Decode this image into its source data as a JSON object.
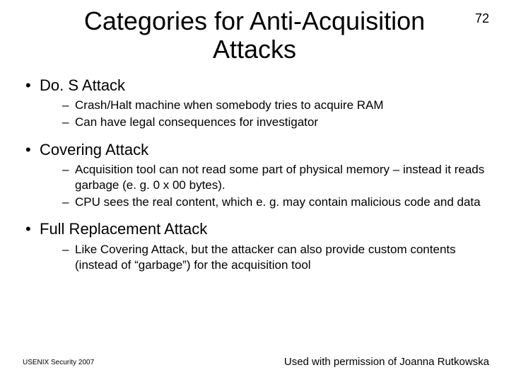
{
  "page_number": "72",
  "title": "Categories for Anti-Acquisition Attacks",
  "bullets": [
    {
      "label": "Do. S Attack",
      "sub": [
        "Crash/Halt machine when somebody tries to acquire RAM",
        "Can have legal consequences for investigator"
      ]
    },
    {
      "label": "Covering Attack",
      "sub": [
        "Acquisition tool can not read some part of physical memory – instead it reads garbage (e. g. 0 x 00 bytes).",
        "CPU sees the real content, which e. g. may contain malicious code and data"
      ]
    },
    {
      "label": "Full Replacement Attack",
      "sub": [
        "Like Covering Attack, but the attacker can also provide custom contents (instead of “garbage”) for the acquisition tool"
      ]
    }
  ],
  "footer_left": "USENIX Security 2007",
  "footer_right": "Used with permission of Joanna Rutkowska",
  "colors": {
    "background": "#ffffff",
    "text": "#000000"
  },
  "fonts": {
    "title_size": 36,
    "bullet_size": 22,
    "sub_size": 17,
    "footer_left_size": 10,
    "footer_right_size": 15
  }
}
